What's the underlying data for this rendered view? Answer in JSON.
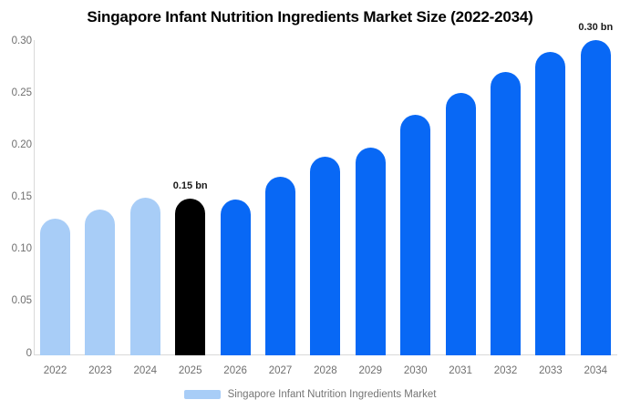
{
  "title": "Singapore Infant Nutrition Ingredients Market Size (2022-2034)",
  "legend": {
    "label": "Singapore Infant Nutrition Ingredients Market"
  },
  "colors": {
    "historical_bar": "#a8cdf7",
    "highlight_bar": "#000000",
    "forecast_bar": "#0868f5",
    "axis_line": "#d9d9d9",
    "tick_label": "#6f6f6f",
    "legend_text": "#757575",
    "annotation_text": "#1a1a1a",
    "title_text": "#000000",
    "background": "#ffffff"
  },
  "chart_data": {
    "type": "bar",
    "title": "Singapore Infant Nutrition Ingredients Market Size (2022-2034)",
    "series_name": "Singapore Infant Nutrition Ingredients Market",
    "unit": "bn",
    "categories": [
      "2022",
      "2023",
      "2024",
      "2025",
      "2026",
      "2027",
      "2028",
      "2029",
      "2030",
      "2031",
      "2032",
      "2033",
      "2034"
    ],
    "values": [
      0.131,
      0.14,
      0.151,
      0.15,
      0.149,
      0.171,
      0.19,
      0.199,
      0.23,
      0.251,
      0.271,
      0.291,
      0.302
    ],
    "ylim": [
      0,
      0.3
    ],
    "ytick_labels": [
      "0",
      "0.05",
      "0.10",
      "0.15",
      "0.20",
      "0.25",
      "0.30"
    ],
    "grid": false,
    "legend_position": "bottom",
    "annotations": [
      {
        "category": "2025",
        "label": "0.15 bn"
      },
      {
        "category": "2034",
        "label": "0.30 bn"
      }
    ],
    "segments": {
      "historical_years": [
        "2022",
        "2023",
        "2024"
      ],
      "highlight_year": "2025",
      "forecast_years": [
        "2026",
        "2027",
        "2028",
        "2029",
        "2030",
        "2031",
        "2032",
        "2033",
        "2034"
      ]
    }
  }
}
